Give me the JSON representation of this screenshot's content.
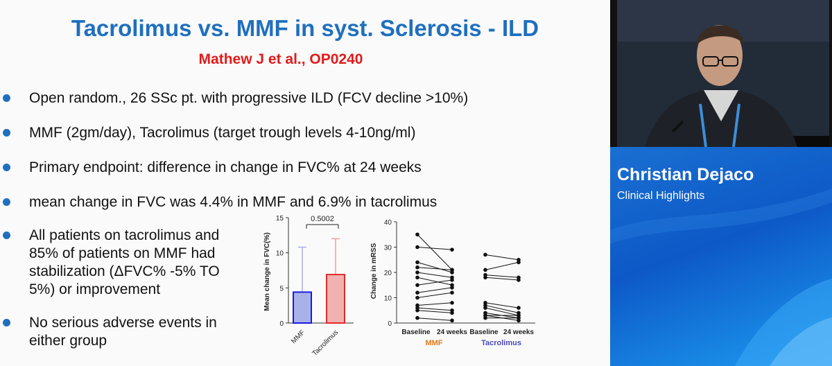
{
  "slide": {
    "title": "Tacrolimus vs. MMF in syst. Sclerosis - ILD",
    "subtitle": "Mathew J et al., OP0240",
    "bullets": [
      "Open random., 26 SSc pt. with progressive ILD (FCV decline >10%)",
      "MMF (2gm/day), Tacrolimus (target trough levels 4-10ng/ml)",
      "Primary endpoint: difference in change in FVC% at 24 weeks",
      "mean change in FVC was 4.4% in MMF and 6.9% in tacrolimus"
    ],
    "bullet5": [
      "All patients on tacrolimus and",
      "85% of patients on MMF had",
      "stabilization (ΔFVC% -5% TO",
      "5%) or improvement"
    ],
    "bullet6": [
      "No serious adverse events in",
      "either group"
    ]
  },
  "speaker": {
    "name": "Christian Dejaco",
    "role": "Clinical Highlights"
  },
  "colors": {
    "title_blue": "#1f6fbf",
    "subtitle_red": "#e11b1b",
    "mmf_bar": "#1a1ae0",
    "tacrolimus_bar": "#e02a2a",
    "mmf_label": "#e07a1a",
    "tacrolimus_label": "#4a4ab8",
    "banner_blue": "#0d59c7"
  },
  "chart_data": [
    {
      "type": "bar",
      "categories": [
        "MMF",
        "Tacrolimus"
      ],
      "values": [
        4.4,
        6.9
      ],
      "error_upper": [
        10.8,
        12.0
      ],
      "ylabel": "Mean change in FVC(%)",
      "ylim": [
        0,
        15
      ],
      "yticks": [
        "0",
        "5",
        "10",
        "15"
      ],
      "annotation": "0.5002"
    },
    {
      "type": "line",
      "ylabel": "Change in mRSS",
      "ylim": [
        0,
        40
      ],
      "yticks": [
        "0",
        "10",
        "20",
        "30",
        "40"
      ],
      "x_labels": [
        "Baseline",
        "24 weeks",
        "Baseline",
        "24 weeks"
      ],
      "groups": [
        "MMF",
        "Tacrolimus"
      ],
      "mmf_pairs": [
        [
          35,
          21
        ],
        [
          30,
          29
        ],
        [
          24,
          20
        ],
        [
          22,
          21
        ],
        [
          20,
          18
        ],
        [
          18,
          15
        ],
        [
          15,
          17
        ],
        [
          12,
          14
        ],
        [
          10,
          12
        ],
        [
          7,
          8
        ],
        [
          6,
          5
        ],
        [
          5,
          4
        ],
        [
          2,
          1
        ]
      ],
      "tac_pairs": [
        [
          27,
          25
        ],
        [
          21,
          24
        ],
        [
          19,
          18
        ],
        [
          18,
          17
        ],
        [
          8,
          6
        ],
        [
          7,
          4
        ],
        [
          6,
          3
        ],
        [
          4,
          2
        ],
        [
          3,
          1
        ],
        [
          3,
          3
        ],
        [
          2,
          2
        ]
      ]
    }
  ]
}
